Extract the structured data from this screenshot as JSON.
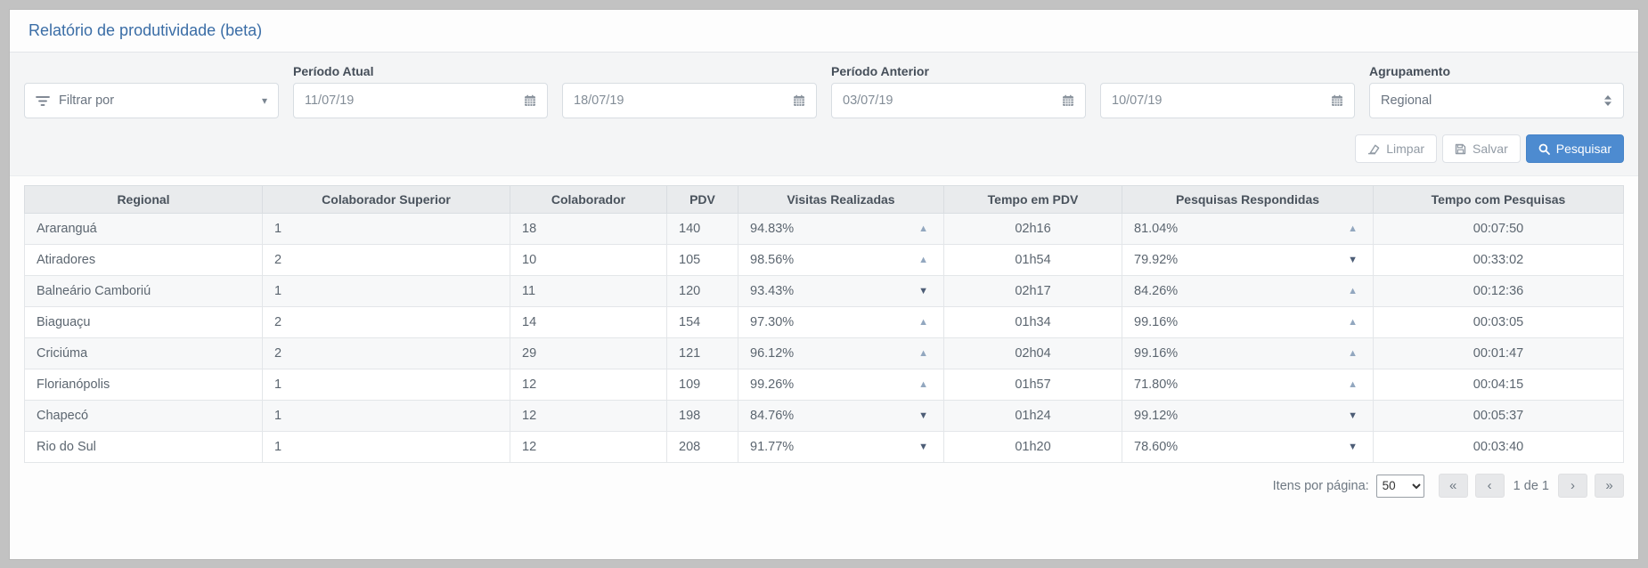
{
  "page": {
    "title": "Relatório de produtividade (beta)"
  },
  "filters": {
    "filter_by": {
      "label": "Filtrar por"
    },
    "period_current": {
      "label": "Período Atual",
      "start": "11/07/19",
      "end": "18/07/19"
    },
    "period_previous": {
      "label": "Período Anterior",
      "start": "03/07/19",
      "end": "10/07/19"
    },
    "grouping": {
      "label": "Agrupamento",
      "value": "Regional"
    },
    "buttons": {
      "clear": "Limpar",
      "save": "Salvar",
      "search": "Pesquisar"
    }
  },
  "table": {
    "columns": [
      "Regional",
      "Colaborador Superior",
      "Colaborador",
      "PDV",
      "Visitas Realizadas",
      "Tempo em PDV",
      "Pesquisas Respondidas",
      "Tempo com Pesquisas"
    ],
    "rows": [
      {
        "regional": "Araranguá",
        "colab_sup": "1",
        "colab": "18",
        "pdv": "140",
        "visitas": "94.83%",
        "visitas_trend": "up",
        "tempo_pdv": "02h16",
        "pesquisas": "81.04%",
        "pesquisas_trend": "up",
        "tempo_pesquisas": "00:07:50"
      },
      {
        "regional": "Atiradores",
        "colab_sup": "2",
        "colab": "10",
        "pdv": "105",
        "visitas": "98.56%",
        "visitas_trend": "up",
        "tempo_pdv": "01h54",
        "pesquisas": "79.92%",
        "pesquisas_trend": "down",
        "tempo_pesquisas": "00:33:02"
      },
      {
        "regional": "Balneário Camboriú",
        "colab_sup": "1",
        "colab": "11",
        "pdv": "120",
        "visitas": "93.43%",
        "visitas_trend": "down",
        "tempo_pdv": "02h17",
        "pesquisas": "84.26%",
        "pesquisas_trend": "up",
        "tempo_pesquisas": "00:12:36"
      },
      {
        "regional": "Biaguaçu",
        "colab_sup": "2",
        "colab": "14",
        "pdv": "154",
        "visitas": "97.30%",
        "visitas_trend": "up",
        "tempo_pdv": "01h34",
        "pesquisas": "99.16%",
        "pesquisas_trend": "up",
        "tempo_pesquisas": "00:03:05"
      },
      {
        "regional": "Criciúma",
        "colab_sup": "2",
        "colab": "29",
        "pdv": "121",
        "visitas": "96.12%",
        "visitas_trend": "up",
        "tempo_pdv": "02h04",
        "pesquisas": "99.16%",
        "pesquisas_trend": "up",
        "tempo_pesquisas": "00:01:47"
      },
      {
        "regional": "Florianópolis",
        "colab_sup": "1",
        "colab": "12",
        "pdv": "109",
        "visitas": "99.26%",
        "visitas_trend": "up",
        "tempo_pdv": "01h57",
        "pesquisas": "71.80%",
        "pesquisas_trend": "up",
        "tempo_pesquisas": "00:04:15"
      },
      {
        "regional": "Chapecó",
        "colab_sup": "1",
        "colab": "12",
        "pdv": "198",
        "visitas": "84.76%",
        "visitas_trend": "down",
        "tempo_pdv": "01h24",
        "pesquisas": "99.12%",
        "pesquisas_trend": "down",
        "tempo_pesquisas": "00:05:37"
      },
      {
        "regional": "Rio do Sul",
        "colab_sup": "1",
        "colab": "12",
        "pdv": "208",
        "visitas": "91.77%",
        "visitas_trend": "down",
        "tempo_pdv": "01h20",
        "pesquisas": "78.60%",
        "pesquisas_trend": "down",
        "tempo_pesquisas": "00:03:40"
      }
    ]
  },
  "pagination": {
    "items_per_page_label": "Itens por página:",
    "items_per_page_value": "50",
    "page_info": "1 de 1",
    "first": "«",
    "prev": "‹",
    "next": "›",
    "last": "»"
  },
  "icons": {
    "filter": "filter-lines",
    "calendar": "calendar-grid",
    "grouping": "up-down-arrows",
    "clear": "eraser",
    "save": "floppy-disk",
    "search": "magnifier",
    "trend_up": "triangle-up",
    "trend_down": "triangle-down"
  },
  "colors": {
    "title_blue": "#3a6da6",
    "accent_blue": "#4d8bd0",
    "trend_up": "#92a7bf",
    "trend_down": "#4d5d76",
    "header_bg": "#e9ebed",
    "filter_bg": "#f4f5f6",
    "frame": "#c2c2c2"
  }
}
